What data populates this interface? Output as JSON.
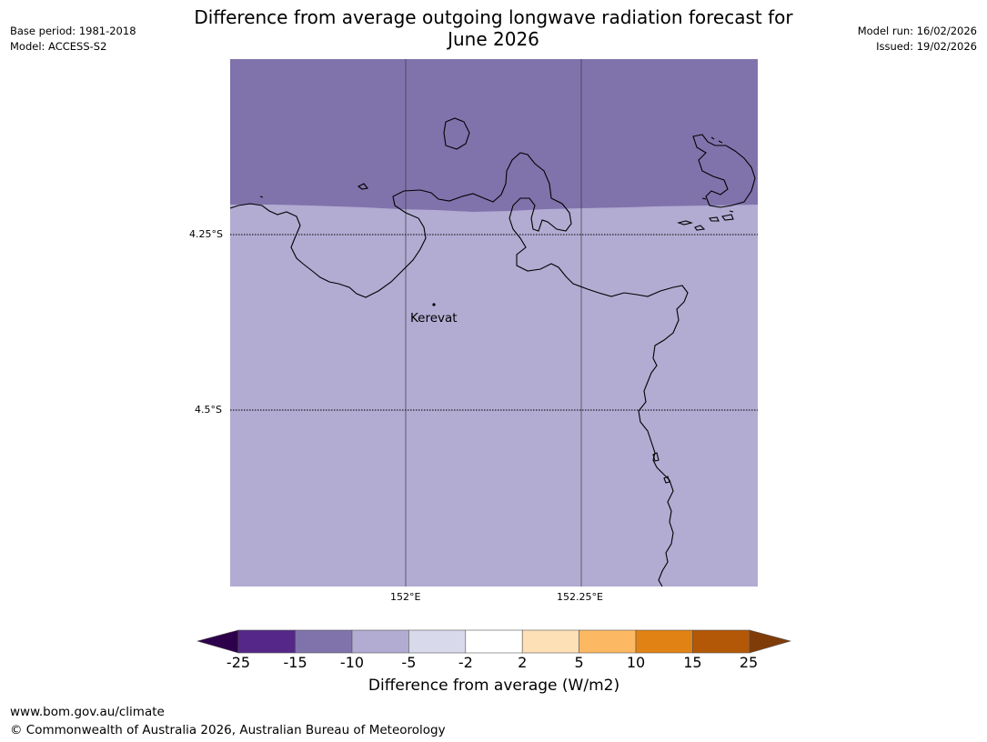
{
  "header": {
    "title_line1": "Difference from average outgoing longwave radiation forecast for",
    "title_line2": "June 2026",
    "base_period": "Base period: 1981-2018",
    "model": "Model: ACCESS-S2",
    "model_run": "Model run: 16/02/2026",
    "issued": "Issued: 19/02/2026"
  },
  "map": {
    "lat_labels": [
      "4.25°S",
      "4.5°S"
    ],
    "lon_labels": [
      "152°E",
      "152.25°E"
    ],
    "places": [
      {
        "name": "Kerevat"
      }
    ],
    "colors": {
      "anomaly_minus10_to_minus15": "#8073ac",
      "anomaly_minus5_to_minus10": "#b2abd2",
      "coastline": "#000000",
      "gridline": "#333333"
    }
  },
  "colorbar": {
    "label": "Difference from average (W/m2)",
    "ticks": [
      "-25",
      "-15",
      "-10",
      "-5",
      "-2",
      "2",
      "5",
      "10",
      "15",
      "25"
    ],
    "colors": [
      "#2d004b",
      "#542788",
      "#8073ac",
      "#b2abd2",
      "#d8daeb",
      "#ffffff",
      "#fee0b6",
      "#fdb863",
      "#e08214",
      "#b35806",
      "#7f3b08"
    ]
  },
  "footer": {
    "url": "www.bom.gov.au/climate",
    "copyright": "© Commonwealth of Australia 2026, Australian Bureau of Meteorology"
  }
}
